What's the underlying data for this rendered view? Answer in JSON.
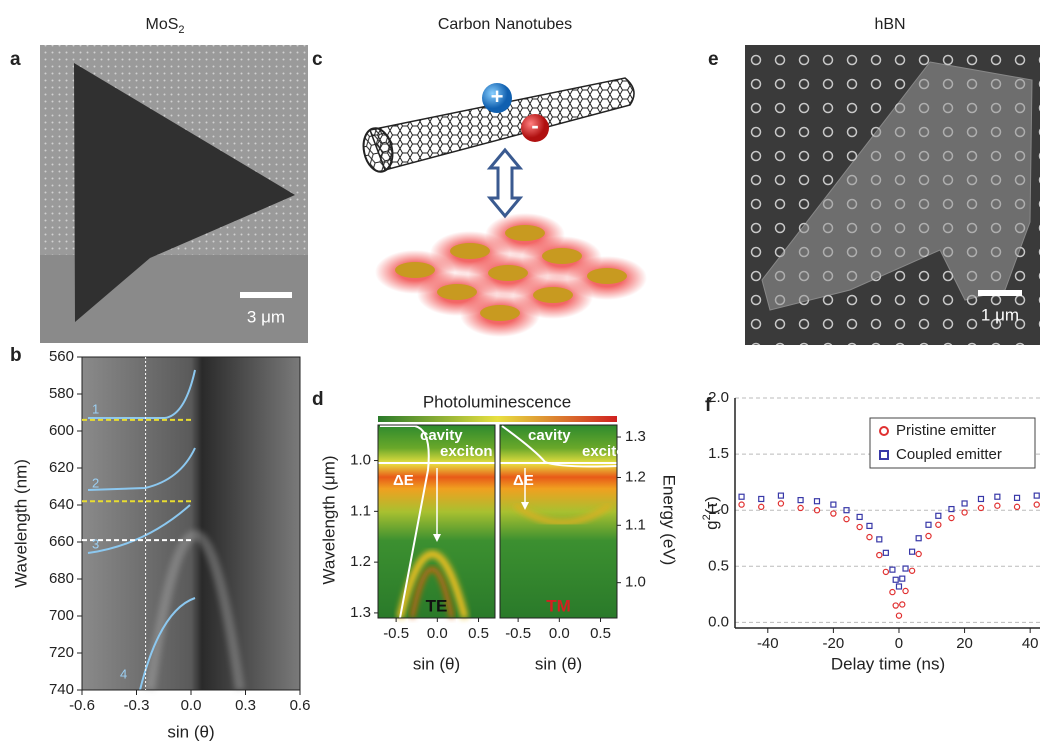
{
  "figure": {
    "titles": {
      "mos2": "MoS",
      "mos2_subscript": "2",
      "nanotubes": "Carbon Nanotubes",
      "hbn": "hBN"
    },
    "panel_labels": [
      "a",
      "b",
      "c",
      "d",
      "e",
      "f"
    ],
    "scale_bars": [
      "3 μm",
      "1 μm"
    ],
    "charges": [
      "+",
      "-"
    ]
  },
  "chart_data": [
    {
      "type": "image",
      "xlabel": "sin (θ)",
      "ylabel": "Wavelength (nm)",
      "xlim": [
        -0.6,
        0.6
      ],
      "ylim": [
        740,
        560
      ],
      "xticks": [
        -0.6,
        -0.3,
        {
          "value": 0,
          "label": "0.0"
        },
        0.3,
        0.6
      ],
      "yticks": [
        560,
        580,
        600,
        620,
        640,
        660,
        680,
        700,
        720,
        740
      ],
      "mode_labels": [
        "1",
        "2",
        "3",
        "4"
      ],
      "hlines": [
        {
          "value": 594,
          "color": "#e8dc30"
        },
        {
          "value": 638,
          "color": "#e8dc30"
        },
        {
          "value": 659,
          "color": "#ffffff"
        }
      ],
      "vline": -0.25
    },
    {
      "type": "image",
      "title": "Photoluminescence",
      "ylabel": "Wavelength (μm)",
      "y2label": "Energy (eV)",
      "xlim": [
        -0.72,
        0.7
      ],
      "ylim": [
        1.31,
        0.93
      ],
      "xticks": [
        -0.5,
        {
          "value": 0,
          "label": "0.0"
        },
        0.5
      ],
      "yticks": [
        {
          "value": 1,
          "label": "1.0"
        },
        1.1,
        1.2,
        1.3
      ],
      "y2lim": [
        0.947,
        1.333
      ],
      "y2scale": "reciprocal",
      "y2ticks": [
        1.3,
        1.2,
        1.1,
        {
          "value": 1,
          "label": "1.0"
        }
      ],
      "panels": [
        {
          "name": "TE",
          "color": "#111111",
          "xlabel": "sin (θ)",
          "labels": [
            "cavity",
            "exciton",
            "ΔE"
          ]
        },
        {
          "name": "TM",
          "color": "#d42020",
          "xlabel": "sin (θ)",
          "labels": [
            "cavity",
            "exciton",
            "ΔE"
          ]
        }
      ]
    },
    {
      "type": "scatter",
      "xlabel": "Delay time (ns)",
      "ylabel": "g",
      "ylabel_superscript": "2",
      "ylabel_tail": "(τ)",
      "xlim": [
        -50,
        43
      ],
      "ylim": [
        -0.05,
        2.0
      ],
      "xticks": [
        -40,
        -20,
        0,
        20,
        40
      ],
      "yticks": [
        {
          "value": 0,
          "label": "0.0"
        },
        0.5,
        {
          "value": 1,
          "label": "1.0"
        },
        1.5,
        {
          "value": 2,
          "label": "2.0"
        }
      ],
      "grid": true,
      "legend": "upper right",
      "series": [
        {
          "name": "Pristine emitter",
          "color": "#e03030",
          "marker": "circle",
          "x": [
            -48,
            -42,
            -36,
            -30,
            -25,
            -20,
            -16,
            -12,
            -9,
            -6,
            -4,
            -2,
            -1,
            0,
            1,
            2,
            4,
            6,
            9,
            12,
            16,
            20,
            25,
            30,
            36,
            42
          ],
          "values": [
            1.05,
            1.03,
            1.06,
            1.02,
            1.0,
            0.97,
            0.92,
            0.85,
            0.76,
            0.6,
            0.45,
            0.27,
            0.15,
            0.06,
            0.16,
            0.28,
            0.46,
            0.61,
            0.77,
            0.87,
            0.93,
            0.98,
            1.02,
            1.04,
            1.03,
            1.05
          ]
        },
        {
          "name": "Coupled emitter",
          "color": "#3838a8",
          "marker": "square",
          "x": [
            -48,
            -42,
            -36,
            -30,
            -25,
            -20,
            -16,
            -12,
            -9,
            -6,
            -4,
            -2,
            -1,
            0,
            1,
            2,
            4,
            6,
            9,
            12,
            16,
            20,
            25,
            30,
            36,
            42
          ],
          "values": [
            1.12,
            1.1,
            1.13,
            1.09,
            1.08,
            1.05,
            1.0,
            0.94,
            0.86,
            0.74,
            0.62,
            0.47,
            0.38,
            0.32,
            0.39,
            0.48,
            0.63,
            0.75,
            0.87,
            0.95,
            1.01,
            1.06,
            1.1,
            1.12,
            1.11,
            1.13
          ]
        }
      ]
    }
  ]
}
